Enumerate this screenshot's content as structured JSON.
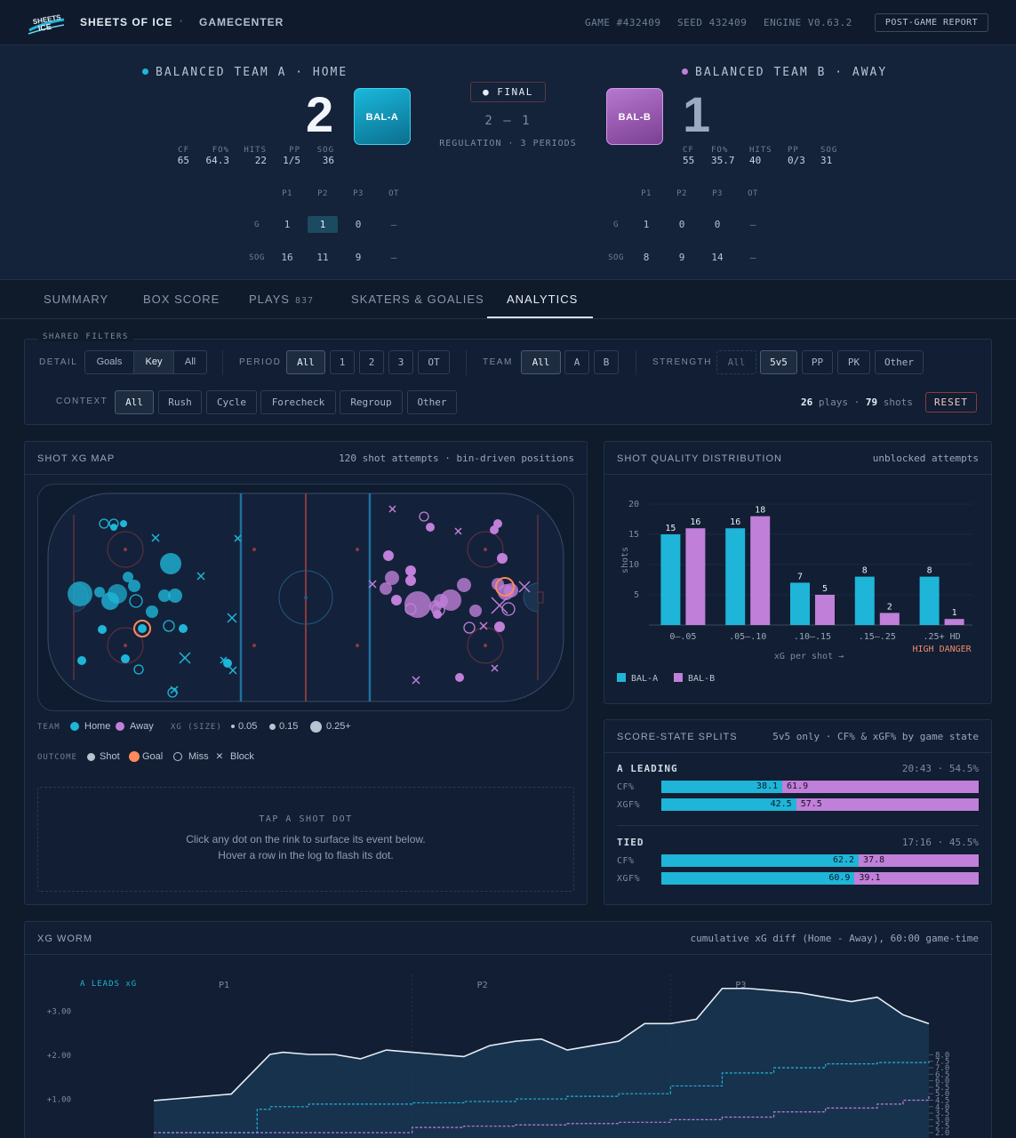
{
  "brand": {
    "name": "SHEETS OF ICE",
    "logo_text": "SHEETS ICE",
    "separator": "·",
    "section": "GAMECENTER"
  },
  "meta": {
    "game": "GAME #432409",
    "seed": "SEED 432409",
    "engine": "ENGINE V0.63.2",
    "report_button": "POST-GAME REPORT"
  },
  "home": {
    "name": "BALANCED TEAM A · HOME",
    "score": "2",
    "badge": "BAL-A",
    "color": "#1fb5d8",
    "stats": [
      {
        "label": "CF",
        "value": "65"
      },
      {
        "label": "FO%",
        "value": "64.3"
      },
      {
        "label": "HITS",
        "value": "22"
      },
      {
        "label": "PP",
        "value": "1/5"
      },
      {
        "label": "SOG",
        "value": "36"
      }
    ],
    "periods": {
      "headers": [
        "P1",
        "P2",
        "P3",
        "OT"
      ],
      "g_label": "G",
      "sog_label": "SOG",
      "g": [
        "1",
        "1",
        "0",
        "—"
      ],
      "sog": [
        "16",
        "11",
        "9",
        "—"
      ]
    }
  },
  "away": {
    "name": "BALANCED TEAM B · AWAY",
    "score": "1",
    "badge": "BAL-B",
    "color": "#c07fd8",
    "stats": [
      {
        "label": "CF",
        "value": "55"
      },
      {
        "label": "FO%",
        "value": "35.7"
      },
      {
        "label": "HITS",
        "value": "40"
      },
      {
        "label": "PP",
        "value": "0/3"
      },
      {
        "label": "SOG",
        "value": "31"
      }
    ],
    "periods": {
      "headers": [
        "P1",
        "P2",
        "P3",
        "OT"
      ],
      "g_label": "G",
      "sog_label": "SOG",
      "g": [
        "1",
        "0",
        "0",
        "—"
      ],
      "sog": [
        "8",
        "9",
        "14",
        "—"
      ]
    }
  },
  "center": {
    "status": "● FINAL",
    "score_home": "2",
    "score_dash": "—",
    "score_away": "1",
    "regulation": "REGULATION · 3 PERIODS"
  },
  "tabs": [
    {
      "label": "SUMMARY"
    },
    {
      "label": "BOX SCORE"
    },
    {
      "label": "PLAYS",
      "count": "837"
    },
    {
      "label": "SKATERS & GOALIES"
    },
    {
      "label": "ANALYTICS"
    }
  ],
  "filters": {
    "title": "SHARED FILTERS",
    "detail": {
      "label": "DETAIL",
      "options": [
        "Goals",
        "Key",
        "All"
      ],
      "selected": "Key"
    },
    "period": {
      "label": "PERIOD",
      "options": [
        "All",
        "1",
        "2",
        "3",
        "OT"
      ],
      "selected": "All"
    },
    "team": {
      "label": "TEAM",
      "options": [
        "All",
        "A",
        "B"
      ],
      "selected": "All"
    },
    "strength": {
      "label": "STRENGTH",
      "options": [
        "All",
        "5v5",
        "PP",
        "PK",
        "Other"
      ],
      "selected": "5v5"
    },
    "context": {
      "label": "CONTEXT",
      "options": [
        "All",
        "Rush",
        "Cycle",
        "Forecheck",
        "Regroup",
        "Other"
      ],
      "selected": "All"
    },
    "plays_count": "26",
    "plays_label": "plays",
    "dot": "·",
    "shots_count": "79",
    "shots_label": "shots",
    "reset": "RESET"
  },
  "shot_map": {
    "title": "SHOT XG MAP",
    "subtitle": "120 shot attempts · bin-driven positions",
    "legend": {
      "team_label": "TEAM",
      "home": "Home",
      "away": "Away",
      "xg_label": "XG (SIZE)",
      "xg_sizes": [
        "0.05",
        "0.15",
        "0.25+"
      ],
      "outcome_label": "OUTCOME",
      "outcomes": [
        "Shot",
        "Goal",
        "Miss",
        "Block"
      ]
    },
    "tap_title": "TAP A SHOT DOT",
    "tap_line1": "Click any dot on the rink to surface its event below.",
    "tap_line2": "Hover a row in the log to flash its dot."
  },
  "quality": {
    "title": "SHOT QUALITY DISTRIBUTION",
    "subtitle": "unblocked attempts",
    "high_danger": "HIGH DANGER"
  },
  "chart_data": [
    {
      "type": "bar",
      "title": "SHOT QUALITY DISTRIBUTION",
      "xlabel": "xG per shot →",
      "ylabel": "shots",
      "categories": [
        "0–.05",
        ".05–.10",
        ".10–.15",
        ".15–.25",
        ".25+ HD"
      ],
      "series": [
        {
          "name": "BAL-A",
          "values": [
            15,
            16,
            7,
            8,
            8
          ],
          "color": "#1fb5d8"
        },
        {
          "name": "BAL-B",
          "values": [
            16,
            18,
            5,
            2,
            1
          ],
          "color": "#c07fd8"
        }
      ],
      "ylim": [
        0,
        20
      ],
      "yticks": [
        5,
        10,
        15,
        20
      ],
      "legend": "bottom-left",
      "grid": true
    },
    {
      "type": "line",
      "title": "XG WORM",
      "subtitle": "cumulative xG diff (Home - Away), 60:00 game-time",
      "annotation": "A LEADS xG",
      "period_labels": [
        "P1",
        "P2",
        "P3"
      ],
      "y_left_ticks": [
        "+1.00",
        "+2.00",
        "+3.00"
      ],
      "y_right_ticks": [
        "2.0",
        "2.5",
        "3.0",
        "3.5",
        "4.0",
        "4.5",
        "5.0",
        "5.5",
        "6.0",
        "6.5",
        "7.0",
        "7.5",
        "8.0"
      ],
      "series": [
        {
          "name": "xG diff",
          "color": "#e6edf5",
          "x": [
            0,
            2,
            4,
            6,
            8,
            9,
            10,
            12,
            14,
            16,
            18,
            20,
            22,
            24,
            26,
            28,
            30,
            32,
            34,
            36,
            38,
            40,
            42,
            44,
            46,
            48,
            50,
            52,
            54,
            56,
            58,
            60
          ],
          "y": [
            0.95,
            1.0,
            1.05,
            1.1,
            1.7,
            2.0,
            2.05,
            2.0,
            2.0,
            1.9,
            2.1,
            2.05,
            2.0,
            1.95,
            2.2,
            2.3,
            2.35,
            2.1,
            2.2,
            2.3,
            2.7,
            2.7,
            2.8,
            3.5,
            3.5,
            3.45,
            3.4,
            3.3,
            3.2,
            3.3,
            2.9,
            2.7
          ]
        },
        {
          "name": "Home xG",
          "color": "#1fb5d8",
          "x": [
            0,
            6,
            8,
            9,
            12,
            16,
            20,
            24,
            28,
            32,
            36,
            40,
            44,
            48,
            52,
            56,
            60
          ],
          "y": [
            2.0,
            2.0,
            3.8,
            4.0,
            4.2,
            4.2,
            4.3,
            4.4,
            4.6,
            4.8,
            5.0,
            5.6,
            6.6,
            7.0,
            7.3,
            7.4,
            7.5
          ]
        },
        {
          "name": "Away xG",
          "color": "#c07fd8",
          "x": [
            0,
            16,
            20,
            24,
            28,
            32,
            36,
            40,
            44,
            48,
            52,
            56,
            58,
            60
          ],
          "y": [
            2.0,
            2.0,
            2.4,
            2.5,
            2.6,
            2.7,
            2.8,
            3.0,
            3.2,
            3.6,
            3.9,
            4.2,
            4.5,
            4.9
          ]
        }
      ]
    }
  ],
  "score_state": {
    "title": "SCORE-STATE SPLITS",
    "subtitle": "5v5 only · CF% & xGF% by game state",
    "groups": [
      {
        "name": "A LEADING",
        "meta": "20:43 · 54.5%",
        "rows": [
          {
            "label": "CF%",
            "a": "38.1",
            "b": "61.9"
          },
          {
            "label": "XGF%",
            "a": "42.5",
            "b": "57.5"
          }
        ]
      },
      {
        "name": "TIED",
        "meta": "17:16 · 45.5%",
        "rows": [
          {
            "label": "CF%",
            "a": "62.2",
            "b": "37.8"
          },
          {
            "label": "XGF%",
            "a": "60.9",
            "b": "39.1"
          }
        ]
      }
    ]
  },
  "worm": {
    "title": "XG WORM",
    "subtitle": "cumulative xG diff (Home - Away), 60:00 game-time"
  }
}
